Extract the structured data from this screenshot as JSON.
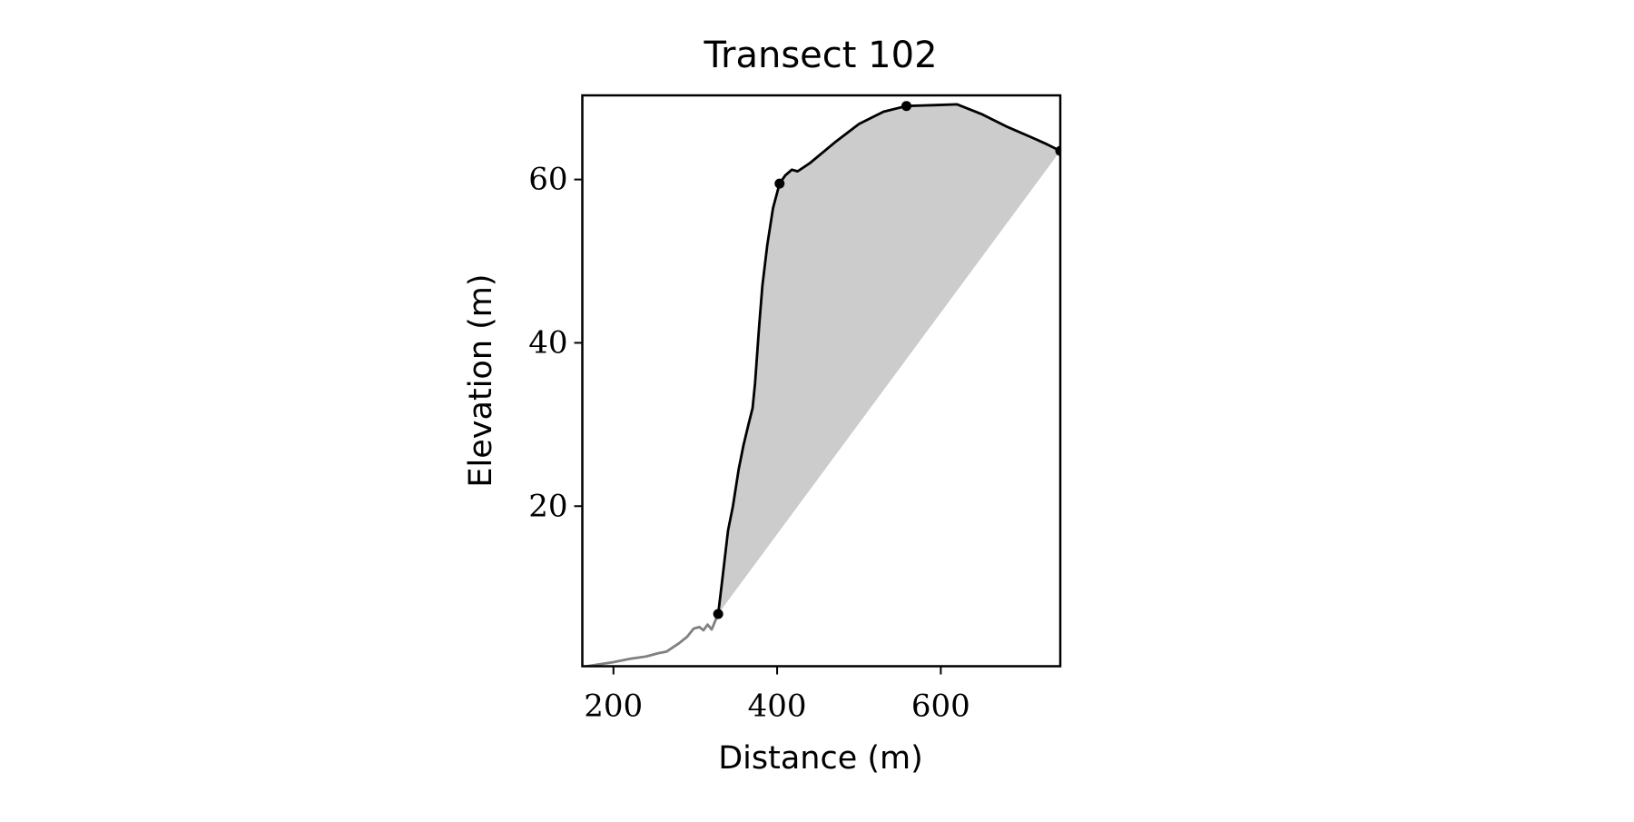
{
  "chart_data": {
    "type": "line",
    "title": "Transect 102",
    "xlabel": "Distance (m)",
    "ylabel": "Elevation (m)",
    "xlim": [
      162,
      746
    ],
    "ylim": [
      0.4,
      70.3
    ],
    "xticks": [
      200,
      400,
      600
    ],
    "yticks": [
      20,
      40,
      60
    ],
    "grid": false,
    "series": [
      {
        "color": "#808080",
        "style": "line",
        "x": [
          162,
          180,
          200,
          220,
          240,
          255,
          265,
          280,
          290,
          298,
          305,
          310,
          315,
          320,
          328
        ],
        "values": [
          0.3,
          0.6,
          0.9,
          1.3,
          1.6,
          2.0,
          2.2,
          3.2,
          4.0,
          5.0,
          5.2,
          4.8,
          5.5,
          4.9,
          6.8
        ]
      },
      {
        "color": "#000000",
        "style": "line",
        "fill": "#cccccc",
        "x": [
          328,
          333,
          340,
          346,
          353,
          359,
          365,
          370,
          373,
          378,
          382,
          388,
          395,
          403,
          410,
          418,
          425,
          440,
          470,
          500,
          530,
          558,
          590,
          620,
          650,
          680,
          710,
          730,
          746
        ],
        "values": [
          6.8,
          11,
          17,
          20,
          24.5,
          27.5,
          30,
          32,
          35,
          42,
          47,
          52,
          56.5,
          59.5,
          60.5,
          61.2,
          61,
          62,
          64.5,
          66.8,
          68.3,
          69,
          69.1,
          69.2,
          68,
          66.5,
          65.2,
          64.3,
          63.5
        ]
      },
      {
        "color": "#000000",
        "style": "points",
        "x": [
          328,
          403,
          558,
          746
        ],
        "values": [
          6.8,
          59.5,
          69,
          63.5
        ]
      }
    ]
  }
}
